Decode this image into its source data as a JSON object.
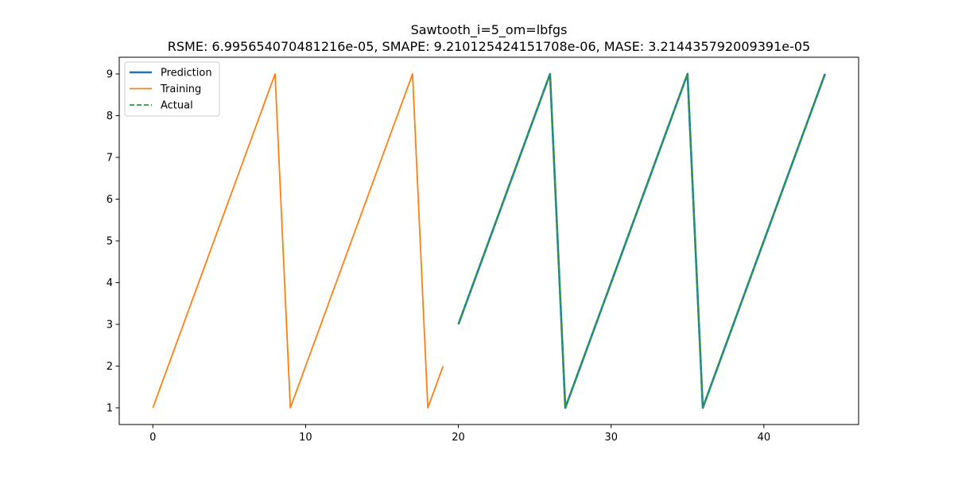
{
  "chart_data": {
    "type": "line",
    "title": "Sawtooth_i=5_om=lbfgs",
    "subtitle": "RSME: 6.995654070481216e-05, SMAPE: 9.210125424151708e-06, MASE: 3.214435792009391e-05",
    "xlabel": "",
    "ylabel": "",
    "xlim": [
      -2.2,
      46.2
    ],
    "ylim": [
      0.6,
      9.4
    ],
    "xticks": [
      0,
      10,
      20,
      30,
      40
    ],
    "yticks": [
      1,
      2,
      3,
      4,
      5,
      6,
      7,
      8,
      9
    ],
    "grid": false,
    "legend_position": "upper-left",
    "series": [
      {
        "name": "Prediction",
        "color": "#1f77b4",
        "style": "solid",
        "x": [
          20,
          21,
          22,
          23,
          24,
          25,
          26,
          27,
          28,
          29,
          30,
          31,
          32,
          33,
          34,
          35,
          36,
          37,
          38,
          39,
          40,
          41,
          42,
          43,
          44
        ],
        "y": [
          3,
          4,
          5,
          6,
          7,
          8,
          9,
          1,
          2,
          3,
          4,
          5,
          6,
          7,
          8,
          9,
          1,
          2,
          3,
          4,
          5,
          6,
          7,
          8,
          9
        ]
      },
      {
        "name": "Training",
        "color": "#ff7f0e",
        "style": "solid",
        "x": [
          0,
          1,
          2,
          3,
          4,
          5,
          6,
          7,
          8,
          9,
          10,
          11,
          12,
          13,
          14,
          15,
          16,
          17,
          18,
          19
        ],
        "y": [
          1,
          2,
          3,
          4,
          5,
          6,
          7,
          8,
          9,
          1,
          2,
          3,
          4,
          5,
          6,
          7,
          8,
          9,
          1,
          2
        ]
      },
      {
        "name": "Actual",
        "color": "#2ca02c",
        "style": "dashed",
        "x": [
          20,
          21,
          22,
          23,
          24,
          25,
          26,
          27,
          28,
          29,
          30,
          31,
          32,
          33,
          34,
          35,
          36,
          37,
          38,
          39,
          40,
          41,
          42,
          43,
          44
        ],
        "y": [
          3,
          4,
          5,
          6,
          7,
          8,
          9,
          1,
          2,
          3,
          4,
          5,
          6,
          7,
          8,
          9,
          1,
          2,
          3,
          4,
          5,
          6,
          7,
          8,
          9
        ]
      }
    ]
  }
}
